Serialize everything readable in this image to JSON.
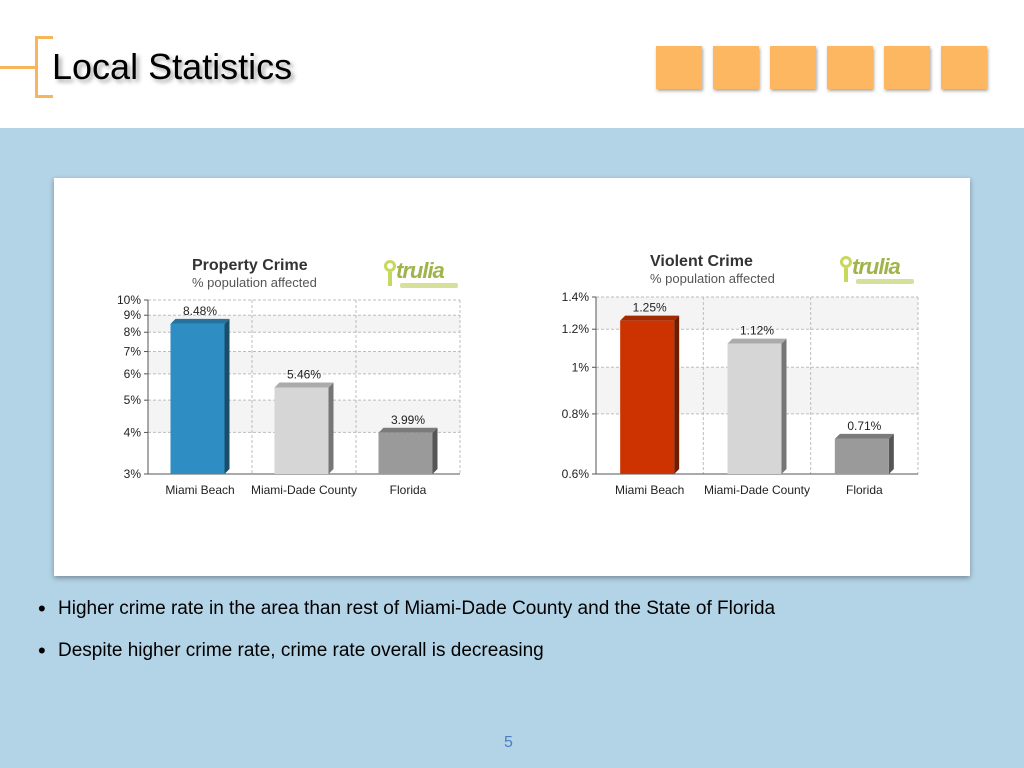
{
  "slide": {
    "title": "Local Statistics",
    "page_number": "5",
    "accent_color": "#f9b55c",
    "background_color": "#b3d3e6",
    "header_squares": 6
  },
  "logos": [
    {
      "icon": "trulia-logo-icon",
      "text": "trulia"
    },
    {
      "icon": "trulia-logo-icon",
      "text": "trulia"
    }
  ],
  "chart_data": [
    {
      "type": "bar",
      "title": "Property Crime",
      "subtitle": "% population affected",
      "categories": [
        "Miami Beach",
        "Miami-Dade County",
        "Florida"
      ],
      "values": [
        8.48,
        5.46,
        3.99
      ],
      "data_labels": [
        "8.48%",
        "5.46%",
        "3.99%"
      ],
      "colors": [
        "#2e8ec3",
        "#d6d6d6",
        "#9a9a9a"
      ],
      "yscale": "log",
      "ylim": [
        3,
        10
      ],
      "yticks": [
        3,
        4,
        5,
        6,
        7,
        8,
        9,
        10
      ],
      "ytick_labels": [
        "3%",
        "4%",
        "5%",
        "6%",
        "7%",
        "8%",
        "9%",
        "10%"
      ],
      "grid": true
    },
    {
      "type": "bar",
      "title": "Violent Crime",
      "subtitle": "% population affected",
      "categories": [
        "Miami Beach",
        "Miami-Dade County",
        "Florida"
      ],
      "values": [
        1.25,
        1.12,
        0.71
      ],
      "data_labels": [
        "1.25%",
        "1.12%",
        "0.71%"
      ],
      "colors": [
        "#cc3300",
        "#d6d6d6",
        "#9a9a9a"
      ],
      "yscale": "log",
      "ylim": [
        0.6,
        1.4
      ],
      "yticks": [
        0.6,
        0.8,
        1.0,
        1.2,
        1.4
      ],
      "ytick_labels": [
        "0.6%",
        "0.8%",
        "1%",
        "1.2%",
        "1.4%"
      ],
      "grid": true
    }
  ],
  "bullets": [
    "Higher crime rate in the area than rest of Miami-Dade County and the State of Florida",
    "Despite higher crime rate, crime rate overall is decreasing"
  ]
}
